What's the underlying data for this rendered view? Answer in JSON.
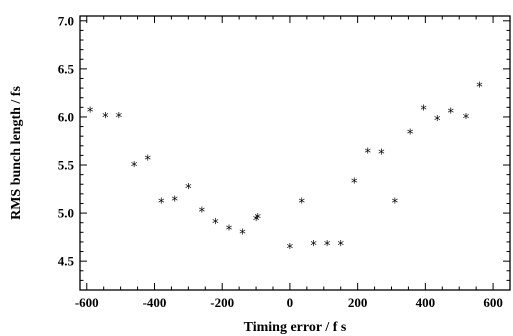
{
  "chart_data": {
    "type": "scatter",
    "title": "",
    "xlabel": "Timing error / f s",
    "ylabel": "RMS bunch length / fs",
    "xlim": [
      -620,
      650
    ],
    "ylim": [
      4.2,
      7.05
    ],
    "x_ticks": [
      -600,
      -400,
      -200,
      0,
      200,
      400,
      600
    ],
    "x_tick_labels": [
      "-600",
      "-400",
      "-200",
      "0",
      "200",
      "400",
      "600"
    ],
    "y_ticks": [
      4.5,
      5.0,
      5.5,
      6.0,
      6.5,
      7.0
    ],
    "y_tick_labels": [
      "4.5",
      "5.0",
      "5.5",
      "6.0",
      "6.5",
      "7.0"
    ],
    "marker": "*",
    "grid": false,
    "series": [
      {
        "x": [
          -590,
          -545,
          -505,
          -460,
          -420,
          -380,
          -340,
          -300,
          -260,
          -220,
          -180,
          -140,
          -100,
          -95,
          0,
          35,
          70,
          110,
          150,
          190,
          230,
          270,
          310,
          355,
          395,
          435,
          475,
          520,
          560
        ],
        "y": [
          6.1,
          6.04,
          6.04,
          5.53,
          5.6,
          5.15,
          5.17,
          5.3,
          5.06,
          4.94,
          4.87,
          4.83,
          4.97,
          4.99,
          4.68,
          5.15,
          4.71,
          4.71,
          4.71,
          5.36,
          5.67,
          5.66,
          5.15,
          5.87,
          6.12,
          6.01,
          6.09,
          6.03,
          6.36
        ]
      }
    ]
  }
}
